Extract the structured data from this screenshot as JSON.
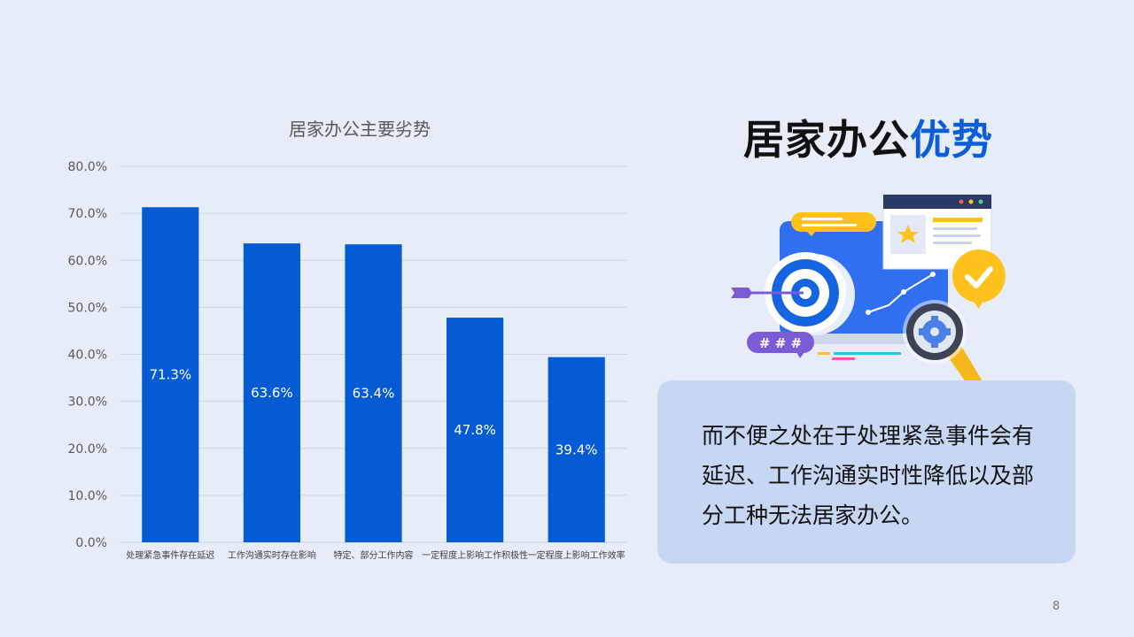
{
  "title": {
    "prefix": "居家办公",
    "highlight": "优势"
  },
  "card": {
    "text": "而不便之处在于处理紧急事件会有延迟、工作沟通实时性降低以及部分工种无法居家办公。"
  },
  "page_number": "8",
  "illustration": {
    "hash_bubble": "# # #"
  },
  "colors": {
    "bar": "#055bd3",
    "accent": "#0b5ed7",
    "card_bg": "#c7d7f3",
    "page_bg": "#e6ecf8"
  },
  "chart_data": {
    "type": "bar",
    "title": "居家办公主要劣势",
    "categories": [
      "处理紧急事件存在延迟",
      "工作沟通实时存在影响",
      "特定、部分工作内容",
      "一定程度上影响工作积极性",
      "一定程度上影响工作效率"
    ],
    "values": [
      71.3,
      63.6,
      63.4,
      47.8,
      39.4
    ],
    "value_labels": [
      "71.3%",
      "63.6%",
      "63.4%",
      "47.8%",
      "39.4%"
    ],
    "y_ticks": [
      "0.0%",
      "10.0%",
      "20.0%",
      "30.0%",
      "40.0%",
      "50.0%",
      "60.0%",
      "70.0%",
      "80.0%"
    ],
    "ylim": [
      0,
      80
    ],
    "grid": true,
    "xlabel": "",
    "ylabel": ""
  }
}
